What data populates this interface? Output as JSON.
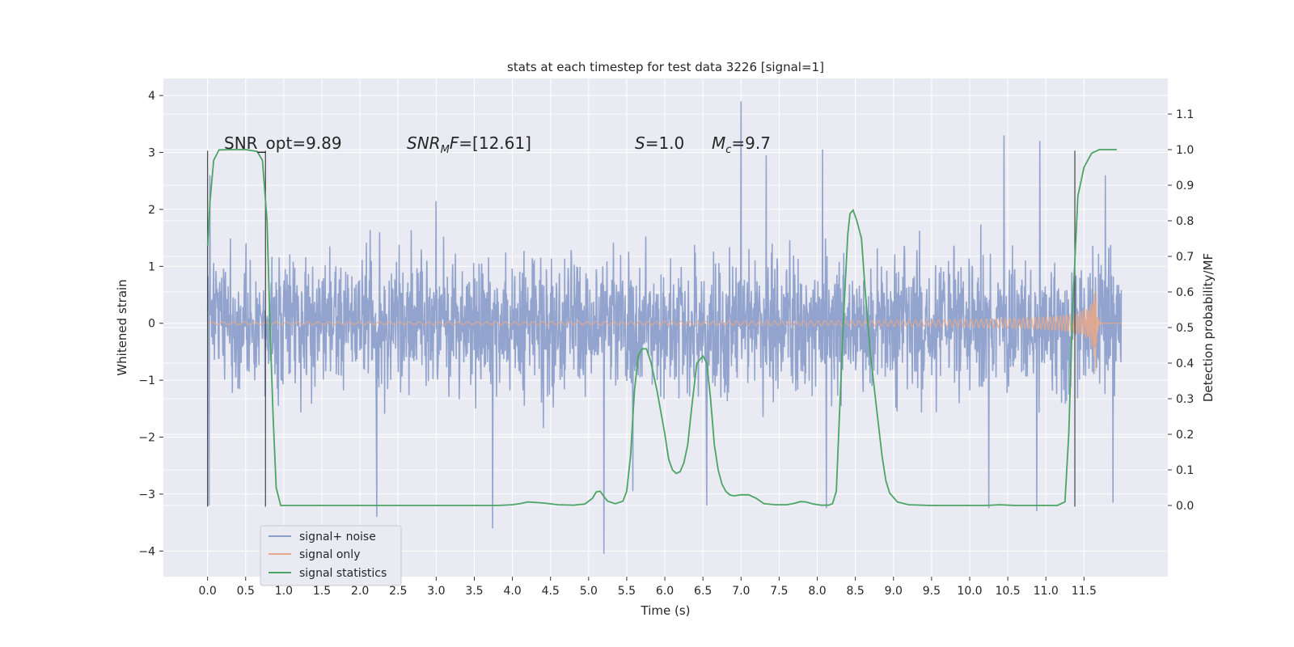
{
  "chart_data": {
    "type": "line",
    "title": "stats at each timestep for test data 3226 [signal=1]",
    "xlabel": "Time (s)",
    "ylabel_left": "Whitened strain",
    "ylabel_right": "Detection probability/MF",
    "xlim": [
      -0.58,
      12.6
    ],
    "ylim_left": [
      -4.45,
      4.3
    ],
    "ylim_right": [
      -0.2,
      1.2
    ],
    "grid": true,
    "legend_position": "lower-left",
    "x_ticks": [
      "0.0",
      "0.5",
      "1.0",
      "1.5",
      "2.0",
      "2.5",
      "3.0",
      "3.5",
      "4.0",
      "4.5",
      "5.0",
      "5.5",
      "6.0",
      "6.5",
      "7.0",
      "7.5",
      "8.0",
      "8.5",
      "9.0",
      "9.5",
      "10.0",
      "10.5",
      "11.0",
      "11.5"
    ],
    "x_tick_values": [
      0,
      0.5,
      1,
      1.5,
      2,
      2.5,
      3,
      3.5,
      4,
      4.5,
      5,
      5.5,
      6,
      6.5,
      7,
      7.5,
      8,
      8.5,
      9,
      9.5,
      10,
      10.5,
      11,
      11.5
    ],
    "y_ticks_left": [
      "4",
      "3",
      "2",
      "1",
      "0",
      "−1",
      "−2",
      "−3",
      "−4"
    ],
    "y_tick_values_left": [
      4,
      3,
      2,
      1,
      0,
      -1,
      -2,
      -3,
      -4
    ],
    "y_ticks_right": [
      "1.1",
      "1.0",
      "0.9",
      "0.8",
      "0.7",
      "0.6",
      "0.5",
      "0.4",
      "0.3",
      "0.2",
      "0.1",
      "0.0"
    ],
    "y_tick_values_right": [
      1.1,
      1.0,
      0.9,
      0.8,
      0.7,
      0.6,
      0.5,
      0.4,
      0.3,
      0.2,
      0.1,
      0.0
    ],
    "annotations": {
      "snr_opt": "SNR_opt=9.89",
      "snr_mf_main": "SNR",
      "snr_mf_sub": "M",
      "snr_mf_rest": "F=[12.61]",
      "s_var": "S",
      "s_rest": "=1.0",
      "mc_var": "M",
      "mc_sub": "c",
      "mc_rest": "=9.7"
    },
    "vertical_lines_x": [
      0.0,
      0.76,
      11.38
    ],
    "series": [
      {
        "name": "signal+ noise",
        "color": "#8da0cb",
        "render": "noise_band",
        "x_range": [
          0.0,
          11.99
        ],
        "typical_amplitude": 1.5,
        "extremes": [
          {
            "x": 0.02,
            "y": -3.2
          },
          {
            "x": 0.03,
            "y": 2.6
          },
          {
            "x": 2.22,
            "y": -3.4
          },
          {
            "x": 3.74,
            "y": -3.6
          },
          {
            "x": 5.2,
            "y": -4.05
          },
          {
            "x": 5.58,
            "y": -2.95
          },
          {
            "x": 6.55,
            "y": -3.2
          },
          {
            "x": 7.0,
            "y": 3.9
          },
          {
            "x": 7.33,
            "y": 2.95
          },
          {
            "x": 8.07,
            "y": 3.05
          },
          {
            "x": 8.12,
            "y": -3.25
          },
          {
            "x": 10.25,
            "y": -3.25
          },
          {
            "x": 10.45,
            "y": 3.3
          },
          {
            "x": 10.88,
            "y": -3.3
          },
          {
            "x": 10.92,
            "y": 3.2
          },
          {
            "x": 11.88,
            "y": -3.15
          },
          {
            "x": 11.78,
            "y": 2.6
          }
        ]
      },
      {
        "name": "signal only",
        "color": "#e5a88c",
        "render": "chirp",
        "x_range": [
          0.0,
          11.99
        ],
        "merger_x": 11.66,
        "peak_amplitude": 1.15
      },
      {
        "name": "signal statistics",
        "color": "#4aa564",
        "axis": "right",
        "x": [
          0.0,
          0.03,
          0.08,
          0.15,
          0.3,
          0.5,
          0.65,
          0.72,
          0.78,
          0.82,
          0.86,
          0.9,
          0.96,
          1.2,
          2.0,
          3.0,
          3.8,
          4.0,
          4.1,
          4.2,
          4.4,
          4.6,
          4.8,
          4.95,
          5.05,
          5.1,
          5.15,
          5.2,
          5.25,
          5.35,
          5.45,
          5.5,
          5.55,
          5.6,
          5.65,
          5.7,
          5.76,
          5.82,
          5.9,
          6.0,
          6.05,
          6.1,
          6.15,
          6.2,
          6.25,
          6.3,
          6.35,
          6.42,
          6.5,
          6.55,
          6.6,
          6.65,
          6.7,
          6.75,
          6.8,
          6.85,
          6.9,
          7.0,
          7.1,
          7.2,
          7.3,
          7.45,
          7.6,
          7.7,
          7.78,
          7.85,
          7.95,
          8.05,
          8.15,
          8.2,
          8.25,
          8.3,
          8.35,
          8.4,
          8.43,
          8.47,
          8.52,
          8.58,
          8.63,
          8.7,
          8.78,
          8.85,
          8.9,
          8.95,
          9.05,
          9.2,
          9.5,
          10.0,
          10.2,
          10.4,
          10.6,
          10.8,
          11.0,
          11.15,
          11.25,
          11.3,
          11.35,
          11.42,
          11.5,
          11.6,
          11.7,
          11.8,
          11.93
        ],
        "y": [
          0.73,
          0.85,
          0.97,
          0.999,
          1.0,
          1.0,
          0.995,
          0.97,
          0.8,
          0.5,
          0.25,
          0.05,
          0.0,
          0.0,
          0.0,
          0.0,
          0.0,
          0.002,
          0.005,
          0.01,
          0.007,
          0.002,
          0.001,
          0.004,
          0.02,
          0.038,
          0.04,
          0.025,
          0.012,
          0.005,
          0.012,
          0.04,
          0.14,
          0.32,
          0.42,
          0.44,
          0.44,
          0.4,
          0.32,
          0.2,
          0.13,
          0.1,
          0.09,
          0.095,
          0.12,
          0.17,
          0.27,
          0.4,
          0.42,
          0.4,
          0.3,
          0.17,
          0.1,
          0.06,
          0.04,
          0.03,
          0.027,
          0.03,
          0.03,
          0.02,
          0.005,
          0.002,
          0.002,
          0.006,
          0.011,
          0.01,
          0.004,
          0.001,
          0.001,
          0.005,
          0.04,
          0.3,
          0.55,
          0.76,
          0.82,
          0.83,
          0.8,
          0.75,
          0.6,
          0.42,
          0.27,
          0.14,
          0.07,
          0.035,
          0.01,
          0.002,
          0.0,
          0.0,
          0.0,
          0.002,
          0.0,
          0.0,
          0.0,
          0.0,
          0.01,
          0.2,
          0.55,
          0.87,
          0.95,
          0.99,
          1.0,
          1.0,
          1.0
        ]
      }
    ]
  }
}
